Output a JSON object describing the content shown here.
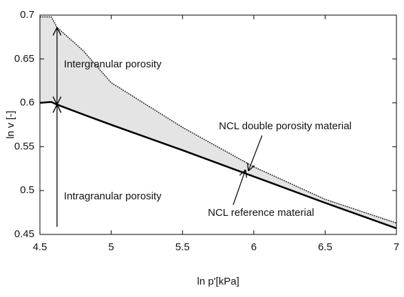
{
  "chart_data": {
    "type": "line",
    "x_label": "ln p'[kPa]",
    "y_label": "ln v [-]",
    "x": [
      4.5,
      4.58,
      4.62,
      4.8,
      5,
      5.5,
      6,
      6.5,
      7
    ],
    "series": [
      {
        "name": "NCL double porosity material",
        "color": "#333333",
        "values": [
          0.698,
          0.698,
          0.686,
          0.66,
          0.623,
          0.572,
          0.527,
          0.49,
          0.463
        ]
      },
      {
        "name": "NCL reference material",
        "color": "#000000",
        "values": [
          0.6,
          0.601,
          0.598,
          0.587,
          0.575,
          0.546,
          0.516,
          0.486,
          0.457
        ]
      }
    ],
    "annotations": [
      "Intergranular porosity",
      "Intragranular porosity"
    ],
    "xlim": [
      4.5,
      7
    ],
    "ylim": [
      0.45,
      0.7
    ],
    "xticks": [
      4.5,
      5,
      5.5,
      6,
      6.5,
      7
    ],
    "yticks": [
      0.45,
      0.5,
      0.55,
      0.6,
      0.65,
      0.7
    ],
    "grid": false,
    "fill_color": "#e4e4e4"
  }
}
